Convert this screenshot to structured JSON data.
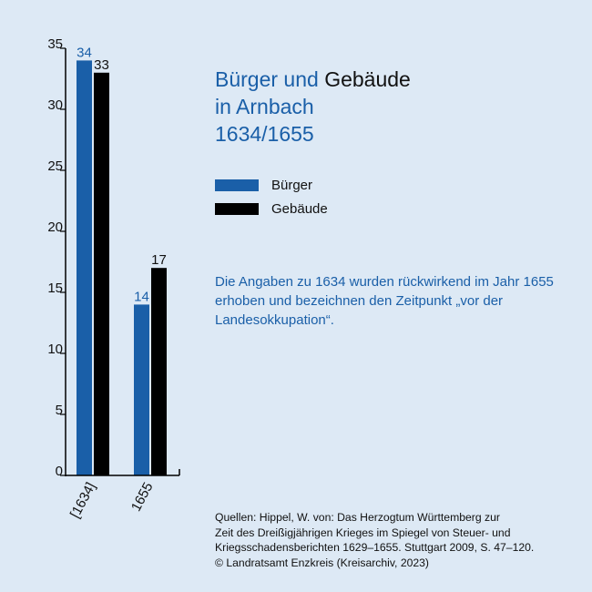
{
  "title": {
    "part_blue": "Bürger und",
    "part_black": "Gebäude",
    "line2": "in Arnbach",
    "line3": "1634/1655"
  },
  "legend": [
    {
      "label": "Bürger",
      "color": "#1a5fa8"
    },
    {
      "label": "Gebäude",
      "color": "#000000"
    }
  ],
  "note": "Die Angaben zu 1634 wurden rückwirkend im Jahr 1655 erhoben und bezeichnen den Zeitpunkt „vor der Landesokkupation“.",
  "source_lines": [
    "Quellen: Hippel, W. von: Das Herzogtum Württemberg zur",
    "Zeit des Dreißigjährigen Krieges im Spiegel von Steuer- und",
    "Kriegsschadensberichten 1629–1655. Stuttgart 2009, S. 47–120.",
    "© Landratsamt Enzkreis (Kreisarchiv, 2023)"
  ],
  "chart_data": {
    "type": "bar",
    "categories": [
      "[1634]",
      "1655"
    ],
    "series": [
      {
        "name": "Bürger",
        "values": [
          34,
          14
        ],
        "color": "#1a5fa8"
      },
      {
        "name": "Gebäude",
        "values": [
          33,
          17
        ],
        "color": "#000000"
      }
    ],
    "ylim": [
      0,
      35
    ],
    "yticks": [
      0,
      5,
      10,
      15,
      20,
      25,
      30,
      35
    ],
    "data_label_colors": [
      "#1a5fa8",
      "#111111"
    ],
    "grid": false,
    "legend_position": "right"
  }
}
